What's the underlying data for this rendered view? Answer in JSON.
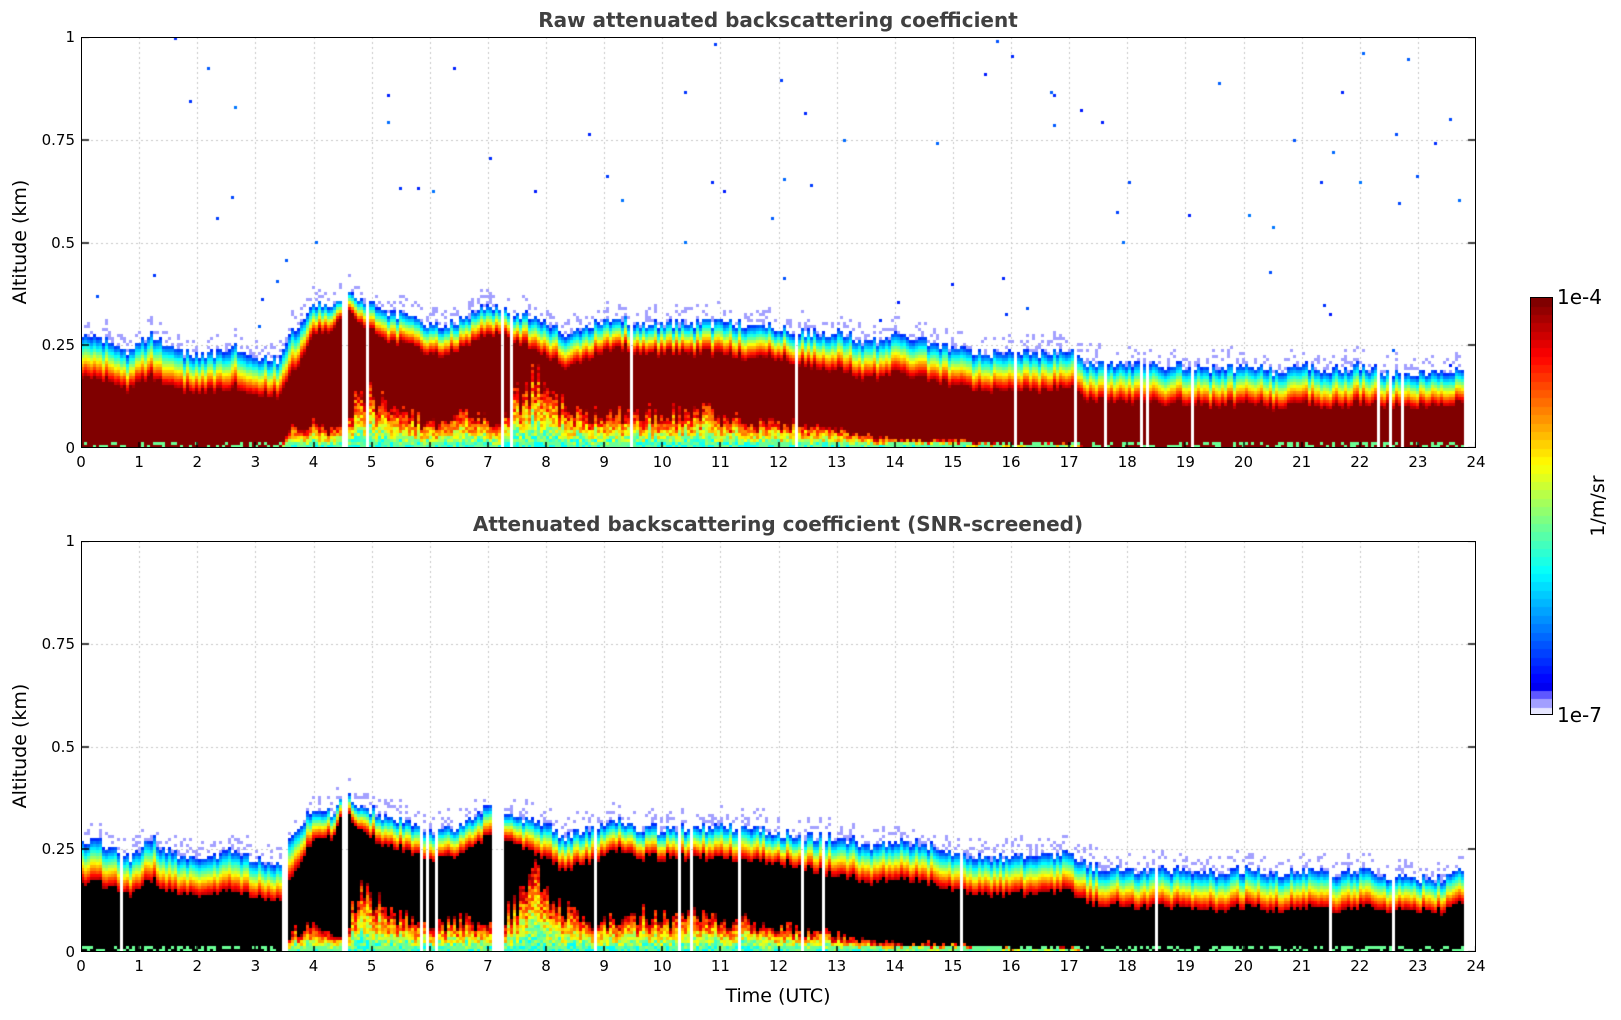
{
  "chart_data": [
    {
      "type": "heatmap",
      "title": "Raw attenuated backscattering coefficient",
      "xlabel": "",
      "ylabel": "Altitude (km)",
      "xlim": [
        0,
        24
      ],
      "ylim": [
        0,
        1
      ],
      "xticks": [
        "0",
        "1",
        "2",
        "3",
        "4",
        "5",
        "6",
        "7",
        "8",
        "9",
        "10",
        "11",
        "12",
        "13",
        "14",
        "15",
        "16",
        "17",
        "18",
        "19",
        "20",
        "21",
        "22",
        "23",
        "24"
      ],
      "yticks": [
        "0",
        "0.25",
        "0.5",
        "0.75",
        "1"
      ],
      "ytick_values": [
        0,
        0.25,
        0.5,
        0.75,
        1
      ],
      "grid": true,
      "saturated_core_color": "#800000",
      "data_end_hour": 23.75
    },
    {
      "type": "heatmap",
      "title": "Attenuated backscattering coefficient (SNR-screened)",
      "xlabel": "Time (UTC)",
      "ylabel": "Altitude (km)",
      "xlim": [
        0,
        24
      ],
      "ylim": [
        0,
        1
      ],
      "xticks": [
        "0",
        "1",
        "2",
        "3",
        "4",
        "5",
        "6",
        "7",
        "8",
        "9",
        "10",
        "11",
        "12",
        "13",
        "14",
        "15",
        "16",
        "17",
        "18",
        "19",
        "20",
        "21",
        "22",
        "23",
        "24"
      ],
      "yticks": [
        "0",
        "0.25",
        "0.5",
        "0.75",
        "1"
      ],
      "ytick_values": [
        0,
        0.25,
        0.5,
        0.75,
        1
      ],
      "grid": true,
      "saturated_core_color": "#000000",
      "data_end_hour": 23.75
    }
  ],
  "profile": {
    "hours": [
      0.0,
      0.3,
      0.8,
      1.2,
      1.4,
      1.8,
      2.3,
      2.6,
      3.0,
      3.4,
      3.6,
      4.0,
      4.3,
      4.5,
      4.8,
      5.2,
      5.6,
      6.0,
      6.5,
      7.0,
      7.3,
      7.8,
      8.3,
      8.7,
      9.2,
      9.6,
      10.0,
      10.5,
      11.0,
      11.5,
      12.0,
      12.5,
      13.0,
      13.5,
      14.0,
      14.5,
      15.0,
      15.5,
      16.0,
      16.5,
      17.0,
      17.3,
      18.0,
      18.5,
      19.0,
      19.5,
      20.0,
      20.5,
      21.0,
      21.5,
      22.0,
      22.5,
      23.0,
      23.5,
      23.75
    ],
    "bl_top_km": [
      0.27,
      0.27,
      0.23,
      0.28,
      0.25,
      0.23,
      0.23,
      0.25,
      0.22,
      0.22,
      0.28,
      0.35,
      0.34,
      0.38,
      0.36,
      0.33,
      0.32,
      0.29,
      0.31,
      0.35,
      0.33,
      0.32,
      0.28,
      0.3,
      0.32,
      0.3,
      0.3,
      0.3,
      0.31,
      0.3,
      0.29,
      0.28,
      0.28,
      0.26,
      0.27,
      0.26,
      0.24,
      0.23,
      0.23,
      0.23,
      0.24,
      0.21,
      0.2,
      0.2,
      0.2,
      0.19,
      0.2,
      0.19,
      0.2,
      0.19,
      0.2,
      0.18,
      0.18,
      0.18,
      0.2
    ],
    "core_top_km": [
      0.17,
      0.17,
      0.14,
      0.18,
      0.15,
      0.14,
      0.14,
      0.15,
      0.13,
      0.13,
      0.18,
      0.28,
      0.28,
      0.34,
      0.3,
      0.26,
      0.25,
      0.22,
      0.24,
      0.28,
      0.27,
      0.24,
      0.2,
      0.22,
      0.25,
      0.23,
      0.23,
      0.23,
      0.23,
      0.22,
      0.22,
      0.2,
      0.19,
      0.17,
      0.18,
      0.17,
      0.15,
      0.14,
      0.14,
      0.14,
      0.15,
      0.12,
      0.11,
      0.11,
      0.11,
      0.1,
      0.11,
      0.1,
      0.11,
      0.1,
      0.11,
      0.1,
      0.1,
      0.1,
      0.12
    ],
    "core_bottom_km": [
      0.0,
      0.0,
      0.0,
      0.0,
      0.0,
      0.0,
      0.0,
      0.0,
      0.0,
      0.0,
      0.05,
      0.06,
      0.04,
      0.05,
      0.14,
      0.11,
      0.08,
      0.06,
      0.08,
      0.07,
      0.09,
      0.18,
      0.1,
      0.08,
      0.08,
      0.09,
      0.08,
      0.1,
      0.08,
      0.07,
      0.06,
      0.05,
      0.04,
      0.03,
      0.02,
      0.02,
      0.02,
      0.01,
      0.01,
      0.01,
      0.01,
      0.0,
      0.0,
      0.0,
      0.0,
      0.0,
      0.0,
      0.0,
      0.0,
      0.0,
      0.0,
      0.0,
      0.0,
      0.0,
      0.0
    ]
  },
  "colorbar": {
    "max_label": "1e-4",
    "min_label": "1e-7",
    "title": "1/m/sr",
    "colormap": "jet",
    "levels": 50
  }
}
